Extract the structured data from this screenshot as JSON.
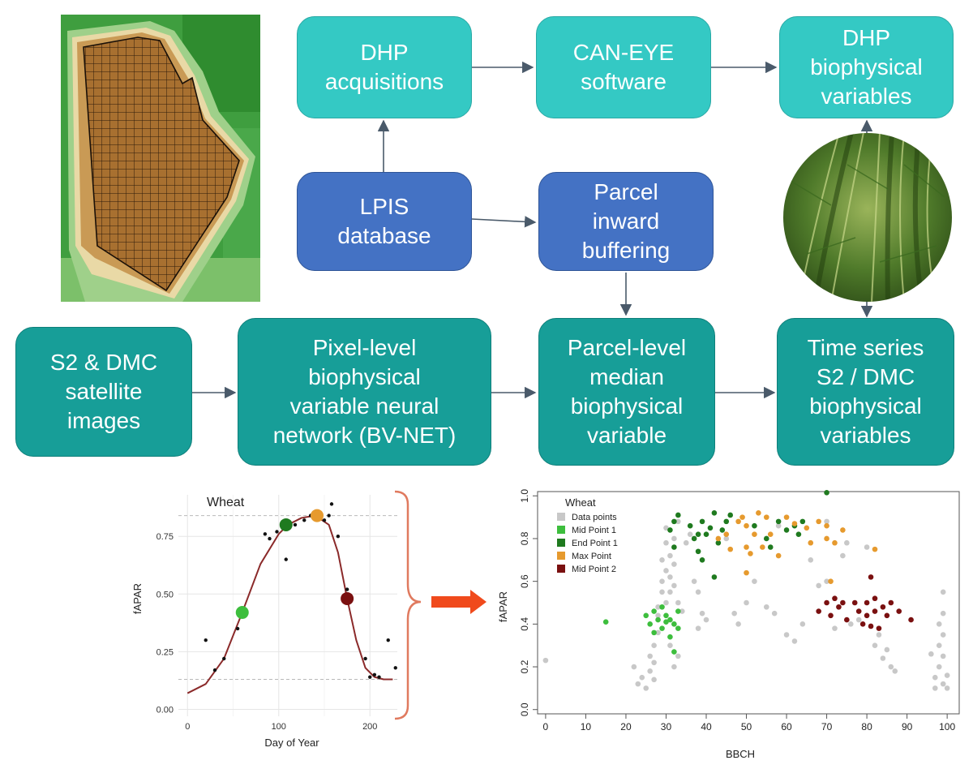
{
  "boxes": {
    "dhp_acquisitions": "DHP\nacquisitions",
    "can_eye": "CAN-EYE\nsoftware",
    "dhp_variables": "DHP\nbiophysical\nvariables",
    "lpis": "LPIS\ndatabase",
    "parcel_buffering": "Parcel\ninward\nbuffering",
    "satellite": "S2 & DMC\nsatellite\nimages",
    "pixel_level": "Pixel-level\nbiophysical\nvariable neural\nnetwork (BV-NET)",
    "parcel_median": "Parcel-level\nmedian\nbiophysical\nvariable",
    "time_series": "Time series\nS2 / DMC\nbiophysical\nvariables"
  },
  "colors": {
    "light_box": "#34c9c4",
    "blue_box": "#4472c4",
    "teal_box": "#179e98",
    "arrow": "#4a5a6a",
    "red_arrow": "#f04a1c",
    "brace": "#e07a5f",
    "data_points": "#c8c8c8",
    "mid_point_1": "#3dbe3d",
    "end_point_1": "#1f7a1f",
    "max_point": "#e69a2e",
    "mid_point_2": "#7a1010",
    "curve": "#8b2a2a"
  },
  "chart_data": [
    {
      "type": "line",
      "title": "Wheat",
      "xlabel": "Day of Year",
      "ylabel": "fAPAR",
      "xlim": [
        -10,
        230
      ],
      "ylim": [
        -0.03,
        0.93
      ],
      "xticks": [
        0,
        100,
        200
      ],
      "yticks": [
        0.0,
        0.25,
        0.5,
        0.75
      ],
      "ytick_labels": [
        "0.00",
        "0.25",
        "0.50",
        "0.75"
      ],
      "grid": true,
      "data_points": [
        [
          20,
          0.3
        ],
        [
          30,
          0.17
        ],
        [
          40,
          0.22
        ],
        [
          55,
          0.35
        ],
        [
          85,
          0.76
        ],
        [
          90,
          0.74
        ],
        [
          98,
          0.77
        ],
        [
          108,
          0.65
        ],
        [
          118,
          0.8
        ],
        [
          128,
          0.82
        ],
        [
          135,
          0.84
        ],
        [
          150,
          0.82
        ],
        [
          155,
          0.84
        ],
        [
          158,
          0.89
        ],
        [
          165,
          0.75
        ],
        [
          175,
          0.52
        ],
        [
          195,
          0.22
        ],
        [
          200,
          0.14
        ],
        [
          205,
          0.15
        ],
        [
          210,
          0.14
        ],
        [
          220,
          0.3
        ],
        [
          228,
          0.18
        ]
      ],
      "curve": [
        [
          0,
          0.07
        ],
        [
          20,
          0.11
        ],
        [
          40,
          0.22
        ],
        [
          60,
          0.42
        ],
        [
          80,
          0.63
        ],
        [
          100,
          0.76
        ],
        [
          110,
          0.8
        ],
        [
          125,
          0.83
        ],
        [
          140,
          0.84
        ],
        [
          155,
          0.8
        ],
        [
          165,
          0.68
        ],
        [
          175,
          0.48
        ],
        [
          185,
          0.3
        ],
        [
          195,
          0.18
        ],
        [
          205,
          0.14
        ],
        [
          215,
          0.13
        ],
        [
          225,
          0.13
        ]
      ],
      "key_points": [
        {
          "name": "Mid Point 1",
          "x": 60,
          "y": 0.42
        },
        {
          "name": "End Point 1",
          "x": 108,
          "y": 0.8
        },
        {
          "name": "Max Point",
          "x": 142,
          "y": 0.84
        },
        {
          "name": "Mid Point 2",
          "x": 175,
          "y": 0.48
        }
      ],
      "hlines": [
        0.84,
        0.13
      ]
    },
    {
      "type": "scatter",
      "legend_title": "Wheat",
      "legend_position": "top-left",
      "xlabel": "BBCH",
      "ylabel": "fAPAR",
      "xlim": [
        -2,
        103
      ],
      "ylim": [
        -0.02,
        1.02
      ],
      "xticks": [
        0,
        10,
        20,
        30,
        40,
        50,
        60,
        70,
        80,
        90,
        100
      ],
      "yticks": [
        0.0,
        0.2,
        0.4,
        0.6,
        0.8,
        1.0
      ],
      "ytick_labels": [
        "0.0",
        "0.2",
        "0.4",
        "0.6",
        "0.8",
        "1.0"
      ],
      "series": [
        {
          "name": "Data points",
          "points": [
            [
              0,
              0.23
            ],
            [
              22,
              0.2
            ],
            [
              23,
              0.12
            ],
            [
              24,
              0.15
            ],
            [
              25,
              0.1
            ],
            [
              26,
              0.18
            ],
            [
              26,
              0.25
            ],
            [
              27,
              0.14
            ],
            [
              27,
              0.22
            ],
            [
              27,
              0.3
            ],
            [
              28,
              0.36
            ],
            [
              28,
              0.48
            ],
            [
              28,
              0.44
            ],
            [
              29,
              0.55
            ],
            [
              29,
              0.6
            ],
            [
              29,
              0.7
            ],
            [
              30,
              0.5
            ],
            [
              30,
              0.65
            ],
            [
              30,
              0.78
            ],
            [
              30,
              0.85
            ],
            [
              31,
              0.3
            ],
            [
              31,
              0.55
            ],
            [
              31,
              0.62
            ],
            [
              31,
              0.72
            ],
            [
              32,
              0.2
            ],
            [
              32,
              0.4
            ],
            [
              32,
              0.58
            ],
            [
              32,
              0.68
            ],
            [
              32,
              0.8
            ],
            [
              33,
              0.25
            ],
            [
              33,
              0.5
            ],
            [
              33,
              0.88
            ],
            [
              34,
              0.46
            ],
            [
              35,
              0.78
            ],
            [
              36,
              0.82
            ],
            [
              37,
              0.6
            ],
            [
              38,
              0.55
            ],
            [
              38,
              0.38
            ],
            [
              39,
              0.45
            ],
            [
              40,
              0.42
            ],
            [
              45,
              0.8
            ],
            [
              47,
              0.45
            ],
            [
              48,
              0.4
            ],
            [
              50,
              0.5
            ],
            [
              52,
              0.6
            ],
            [
              55,
              0.48
            ],
            [
              57,
              0.45
            ],
            [
              58,
              0.86
            ],
            [
              60,
              0.35
            ],
            [
              62,
              0.32
            ],
            [
              64,
              0.4
            ],
            [
              66,
              0.7
            ],
            [
              68,
              0.58
            ],
            [
              70,
              0.6
            ],
            [
              70,
              0.88
            ],
            [
              72,
              0.38
            ],
            [
              74,
              0.72
            ],
            [
              75,
              0.78
            ],
            [
              76,
              0.4
            ],
            [
              78,
              0.42
            ],
            [
              80,
              0.76
            ],
            [
              82,
              0.3
            ],
            [
              83,
              0.35
            ],
            [
              84,
              0.24
            ],
            [
              85,
              0.28
            ],
            [
              86,
              0.2
            ],
            [
              87,
              0.18
            ],
            [
              96,
              0.26
            ],
            [
              97,
              0.1
            ],
            [
              97,
              0.15
            ],
            [
              98,
              0.2
            ],
            [
              98,
              0.3
            ],
            [
              98,
              0.4
            ],
            [
              99,
              0.12
            ],
            [
              99,
              0.25
            ],
            [
              99,
              0.35
            ],
            [
              99,
              0.45
            ],
            [
              99,
              0.55
            ],
            [
              100,
              0.16
            ],
            [
              100,
              0.1
            ]
          ]
        },
        {
          "name": "Mid Point 1",
          "points": [
            [
              15,
              0.41
            ],
            [
              25,
              0.44
            ],
            [
              26,
              0.4
            ],
            [
              27,
              0.36
            ],
            [
              27,
              0.46
            ],
            [
              28,
              0.42
            ],
            [
              29,
              0.38
            ],
            [
              30,
              0.44
            ],
            [
              30,
              0.41
            ],
            [
              31,
              0.34
            ],
            [
              31,
              0.42
            ],
            [
              32,
              0.4
            ],
            [
              32,
              0.27
            ],
            [
              33,
              0.46
            ],
            [
              33,
              0.38
            ],
            [
              29,
              0.48
            ]
          ]
        },
        {
          "name": "End Point 1",
          "points": [
            [
              31,
              0.84
            ],
            [
              32,
              0.88
            ],
            [
              32,
              0.76
            ],
            [
              33,
              0.91
            ],
            [
              36,
              0.86
            ],
            [
              37,
              0.8
            ],
            [
              38,
              0.82
            ],
            [
              38,
              0.74
            ],
            [
              39,
              0.88
            ],
            [
              39,
              0.7
            ],
            [
              40,
              0.82
            ],
            [
              41,
              0.85
            ],
            [
              42,
              0.92
            ],
            [
              43,
              0.78
            ],
            [
              44,
              0.84
            ],
            [
              45,
              0.88
            ],
            [
              46,
              0.91
            ],
            [
              52,
              0.86
            ],
            [
              55,
              0.8
            ],
            [
              56,
              0.76
            ],
            [
              58,
              0.88
            ],
            [
              60,
              0.84
            ],
            [
              62,
              0.86
            ],
            [
              63,
              0.82
            ],
            [
              64,
              0.88
            ],
            [
              70,
              1.03
            ],
            [
              42,
              0.62
            ]
          ]
        },
        {
          "name": "Max Point",
          "points": [
            [
              43,
              0.8
            ],
            [
              45,
              0.82
            ],
            [
              46,
              0.75
            ],
            [
              48,
              0.88
            ],
            [
              49,
              0.9
            ],
            [
              50,
              0.86
            ],
            [
              50,
              0.76
            ],
            [
              51,
              0.73
            ],
            [
              52,
              0.82
            ],
            [
              53,
              0.92
            ],
            [
              54,
              0.76
            ],
            [
              55,
              0.9
            ],
            [
              56,
              0.82
            ],
            [
              58,
              0.72
            ],
            [
              60,
              0.9
            ],
            [
              62,
              0.87
            ],
            [
              65,
              0.85
            ],
            [
              66,
              0.78
            ],
            [
              68,
              0.88
            ],
            [
              70,
              0.86
            ],
            [
              70,
              0.8
            ],
            [
              71,
              0.6
            ],
            [
              72,
              0.78
            ],
            [
              74,
              0.84
            ],
            [
              82,
              0.75
            ],
            [
              50,
              0.64
            ]
          ]
        },
        {
          "name": "Mid Point 2",
          "points": [
            [
              68,
              0.46
            ],
            [
              70,
              0.5
            ],
            [
              71,
              0.44
            ],
            [
              72,
              0.52
            ],
            [
              73,
              0.48
            ],
            [
              74,
              0.5
            ],
            [
              75,
              0.42
            ],
            [
              78,
              0.46
            ],
            [
              79,
              0.4
            ],
            [
              80,
              0.5
            ],
            [
              80,
              0.44
            ],
            [
              81,
              0.62
            ],
            [
              82,
              0.52
            ],
            [
              82,
              0.46
            ],
            [
              83,
              0.38
            ],
            [
              84,
              0.48
            ],
            [
              85,
              0.44
            ],
            [
              86,
              0.5
            ],
            [
              88,
              0.46
            ],
            [
              91,
              0.42
            ],
            [
              81,
              0.39
            ],
            [
              77,
              0.5
            ]
          ]
        }
      ]
    }
  ]
}
